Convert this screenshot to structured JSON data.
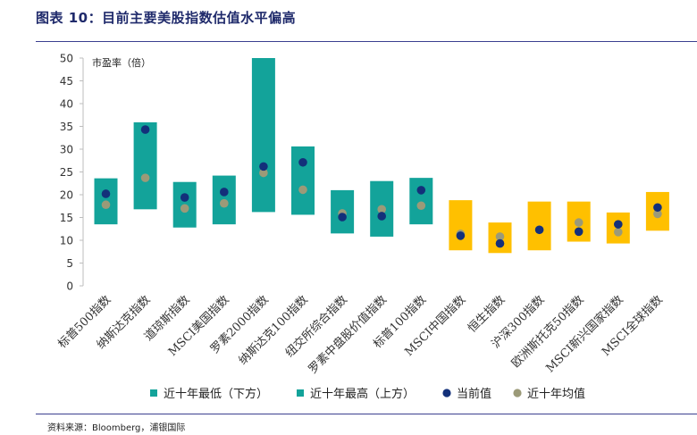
{
  "figure": {
    "title": "图表 10：目前主要美股指数估值水平偏高",
    "source": "资料来源：Bloomberg，浦银国际"
  },
  "colors": {
    "us": "#13a39a",
    "cn": "#ffc000",
    "current": "#13307a",
    "average": "#9b9a78",
    "text": "#333333"
  },
  "chart_data": {
    "type": "range_bar",
    "title": "",
    "ylabel": "市盈率（倍）",
    "ylim": [
      0,
      50
    ],
    "yticks": [
      0,
      5,
      10,
      15,
      20,
      25,
      30,
      35,
      40,
      45,
      50
    ],
    "categories": [
      "标普500指数",
      "纳斯达克指数",
      "道琼斯指数",
      "MSCI美国指数",
      "罗素2000指数",
      "纳斯达克100指数",
      "纽交所综合指数",
      "罗素中盘股价值指数",
      "标普100指数",
      "MSCI中国指数",
      "恒生指数",
      "沪深300指数",
      "欧洲斯托克50指数",
      "MSCI新兴国家指数",
      "MSCI全球指数"
    ],
    "series": [
      {
        "name": "近十年最低（下方）",
        "values": [
          13.5,
          16.8,
          12.8,
          13.5,
          16.2,
          15.6,
          11.5,
          10.8,
          13.5,
          7.8,
          7.2,
          7.8,
          9.7,
          9.3,
          12.1
        ]
      },
      {
        "name": "近十年最高（上方）",
        "values": [
          23.6,
          35.9,
          22.8,
          24.2,
          50,
          30.6,
          21,
          23,
          23.7,
          18.8,
          13.9,
          18.5,
          18.5,
          16.1,
          20.6
        ]
      },
      {
        "name": "当前值",
        "values": [
          20.2,
          34.3,
          19.4,
          20.6,
          26.2,
          27.1,
          15.1,
          15.3,
          21,
          11,
          9.3,
          12.3,
          11.9,
          13.5,
          17.2
        ]
      },
      {
        "name": "近十年均值",
        "values": [
          17.8,
          23.7,
          17,
          18.1,
          24.8,
          21.1,
          15.9,
          16.8,
          17.6,
          11.4,
          10.8,
          12.3,
          13.9,
          11.8,
          15.8
        ]
      }
    ],
    "bar_color_group": [
      "us",
      "us",
      "us",
      "us",
      "us",
      "us",
      "us",
      "us",
      "us",
      "cn",
      "cn",
      "cn",
      "cn",
      "cn",
      "cn"
    ],
    "legend": [
      "近十年最低（下方）",
      "近十年最高（上方）",
      "当前值",
      "近十年均值"
    ],
    "legend_position": "bottom"
  }
}
